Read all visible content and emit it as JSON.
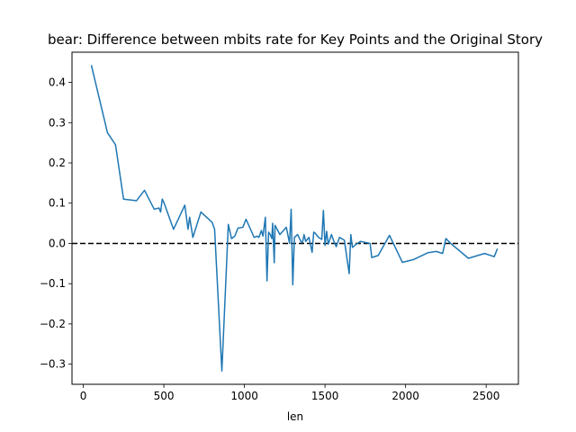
{
  "chart_data": {
    "type": "line",
    "title": "bear: Difference between mbits rate for Key Points and the Original Story",
    "xlabel": "len",
    "ylabel": "",
    "xlim": [
      -70,
      2700
    ],
    "ylim": [
      -0.35,
      0.475
    ],
    "xticks": [
      0,
      500,
      1000,
      1500,
      2000,
      2500
    ],
    "yticks": [
      -0.3,
      -0.2,
      -0.1,
      0.0,
      0.1,
      0.2,
      0.3,
      0.4
    ],
    "ytick_labels": [
      "−0.3",
      "−0.2",
      "−0.1",
      "0.0",
      "0.1",
      "0.2",
      "0.3",
      "0.4"
    ],
    "reference_line": {
      "y": 0,
      "style": "dashed",
      "color": "#000000"
    },
    "series": [
      {
        "color": "#1f77b4",
        "x": [
          50,
          150,
          200,
          250,
          330,
          380,
          440,
          470,
          480,
          490,
          500,
          560,
          630,
          650,
          660,
          680,
          730,
          800,
          815,
          860,
          900,
          920,
          940,
          960,
          990,
          1010,
          1060,
          1080,
          1090,
          1105,
          1115,
          1130,
          1140,
          1150,
          1160,
          1170,
          1175,
          1185,
          1190,
          1220,
          1260,
          1280,
          1290,
          1300,
          1310,
          1330,
          1350,
          1360,
          1370,
          1380,
          1400,
          1420,
          1430,
          1440,
          1460,
          1480,
          1490,
          1500,
          1510,
          1520,
          1540,
          1560,
          1570,
          1590,
          1620,
          1650,
          1660,
          1670,
          1690,
          1720,
          1780,
          1790,
          1830,
          1900,
          1980,
          2050,
          2140,
          2190,
          2230,
          2250,
          2280,
          2390,
          2490,
          2550,
          2570
        ],
        "values": [
          0.443,
          0.275,
          0.245,
          0.11,
          0.106,
          0.132,
          0.085,
          0.088,
          0.078,
          0.11,
          0.102,
          0.035,
          0.095,
          0.035,
          0.065,
          0.015,
          0.078,
          0.052,
          0.035,
          -0.317,
          0.047,
          0.012,
          0.018,
          0.038,
          0.04,
          0.06,
          0.015,
          0.018,
          0.015,
          0.032,
          0.018,
          0.065,
          -0.093,
          0.028,
          0.022,
          0.012,
          0.05,
          -0.048,
          0.045,
          0.022,
          0.04,
          0.0,
          0.085,
          -0.103,
          0.015,
          0.022,
          0.005,
          0.002,
          0.022,
          0.005,
          0.015,
          -0.022,
          0.028,
          0.025,
          0.015,
          0.01,
          0.082,
          -0.005,
          0.03,
          -0.002,
          0.022,
          0.0,
          -0.008,
          0.015,
          0.008,
          -0.075,
          0.022,
          -0.01,
          -0.003,
          0.005,
          0.0,
          -0.035,
          -0.03,
          0.02,
          -0.047,
          -0.04,
          -0.023,
          -0.02,
          -0.025,
          0.012,
          0.0,
          -0.037,
          -0.025,
          -0.033,
          -0.013
        ]
      }
    ]
  }
}
